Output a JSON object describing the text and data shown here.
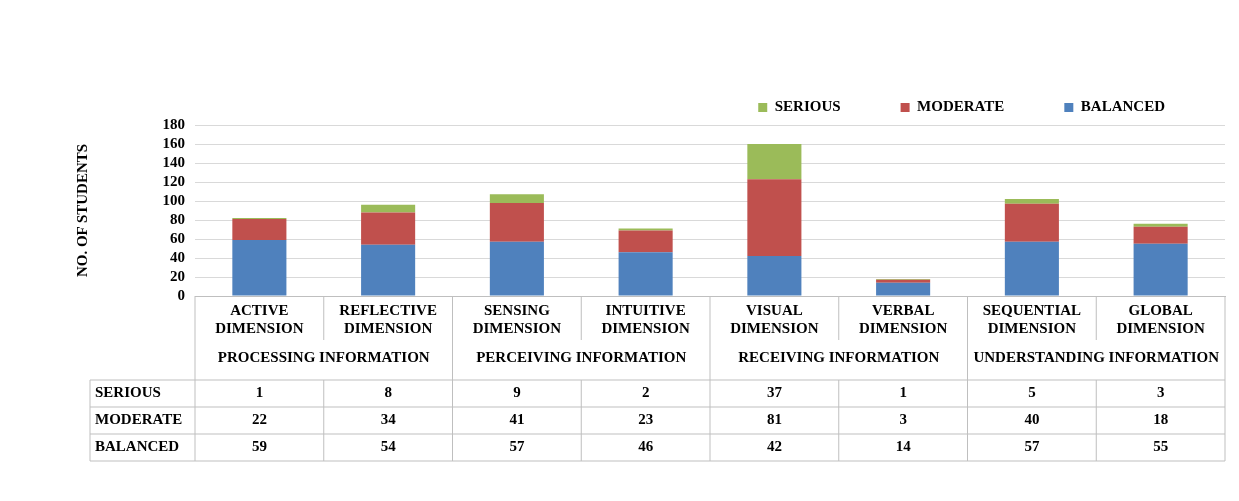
{
  "chart_data": {
    "type": "bar",
    "stacked": true,
    "ylabel": "NO. OF STUDENTS",
    "categories": [
      "ACTIVE DIMENSION",
      "REFLECTIVE DIMENSION",
      "SENSING DIMENSION",
      "INTUITIVE DIMENSION",
      "VISUAL DIMENSION",
      "VERBAL DIMENSION",
      "SEQUENTIAL DIMENSION",
      "GLOBAL DIMENSION"
    ],
    "annotations": [
      "PROCESSING INFORMATION",
      "PERCEIVING INFORMATION",
      "RECEIVING INFORMATION",
      "UNDERSTANDING INFORMATION"
    ],
    "series": [
      {
        "name": "BALANCED",
        "color": "#4f81bd",
        "values": [
          59,
          54,
          57,
          46,
          42,
          14,
          57,
          55
        ]
      },
      {
        "name": "MODERATE",
        "color": "#c0504d",
        "values": [
          22,
          34,
          41,
          23,
          81,
          3,
          40,
          18
        ]
      },
      {
        "name": "SERIOUS",
        "color": "#9bbb59",
        "values": [
          1,
          8,
          9,
          2,
          37,
          1,
          5,
          3
        ]
      }
    ],
    "ylim": [
      0,
      180
    ],
    "yticks": [
      0,
      20,
      40,
      60,
      80,
      100,
      120,
      140,
      160,
      180
    ],
    "grid": "y",
    "legend": "top right",
    "data_labels": true
  }
}
